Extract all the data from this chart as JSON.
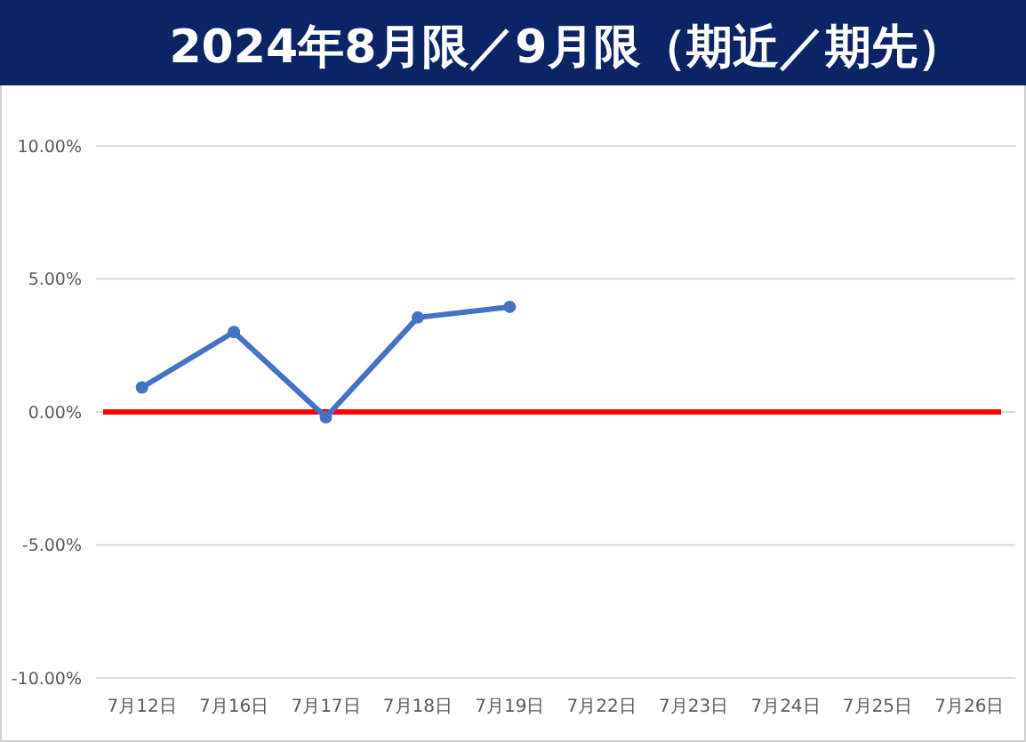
{
  "chart_data": {
    "type": "line",
    "title": "2024年8月限／9月限（期近／期先）",
    "categories": [
      "7月12日",
      "7月16日",
      "7月17日",
      "7月18日",
      "7月19日",
      "7月22日",
      "7月23日",
      "7月24日",
      "7月25日",
      "7月26日"
    ],
    "series": [
      {
        "color": "#4472c4",
        "values": [
          0.92,
          3.0,
          -0.2,
          3.55,
          3.95,
          null,
          null,
          null,
          null,
          null
        ]
      }
    ],
    "ylim": [
      -10,
      10
    ],
    "yticks": [
      {
        "value": -10,
        "label": "-10.00%"
      },
      {
        "value": -5,
        "label": "-5.00%"
      },
      {
        "value": 0,
        "label": "0.00%"
      },
      {
        "value": 5,
        "label": "5.00%"
      },
      {
        "value": 10,
        "label": "10.00%"
      }
    ],
    "grid": "y",
    "marker": "circle",
    "line_style": "solid",
    "ref_lines": [
      {
        "axis": "y",
        "value": 0,
        "color": "#ff0000"
      }
    ]
  }
}
